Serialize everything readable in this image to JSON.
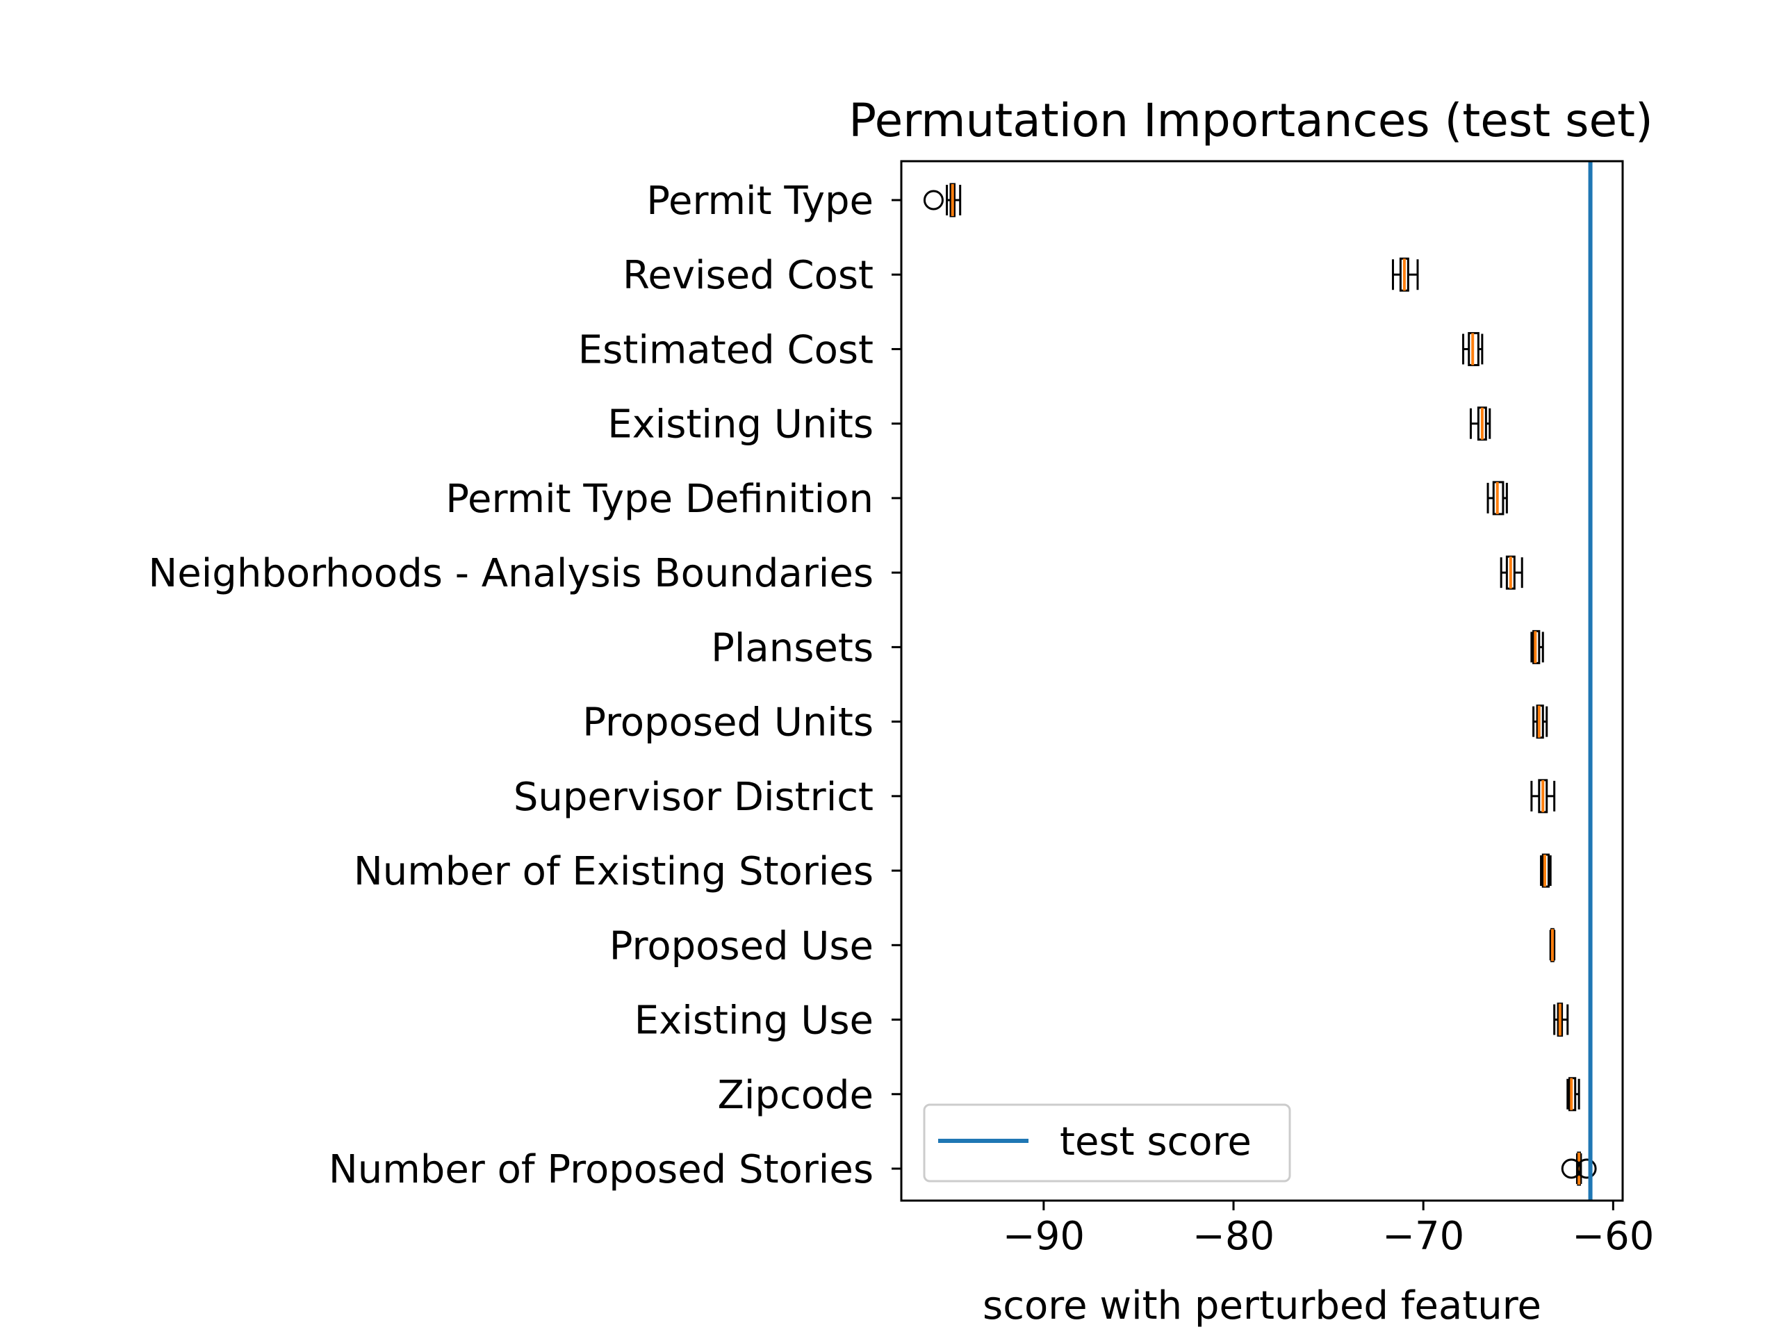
{
  "chart_data": {
    "type": "box",
    "orientation": "horizontal",
    "title": "Permutation Importances (test set)",
    "xlabel": "score with perturbed feature",
    "ylabel": "",
    "xlim": [
      -97.5,
      -59.5
    ],
    "xticks": [
      -90,
      -80,
      -70,
      -60
    ],
    "xtick_labels": [
      "−90",
      "−80",
      "−70",
      "−60"
    ],
    "grid": false,
    "legend": {
      "position": "lower-left",
      "entries": [
        "test score"
      ]
    },
    "colors": {
      "box": "#000000",
      "median": "#ff7f0e",
      "test_score": "#1f77b4"
    },
    "test_score": -61.2,
    "features": [
      {
        "label": "Permit Type",
        "whislo": -95.1,
        "q1": -94.9,
        "median": -94.8,
        "q3": -94.7,
        "whishi": -94.4,
        "fliers": [
          -95.8
        ]
      },
      {
        "label": "Revised Cost",
        "whislo": -71.6,
        "q1": -71.2,
        "median": -71.0,
        "q3": -70.8,
        "whishi": -70.3,
        "fliers": []
      },
      {
        "label": "Estimated Cost",
        "whislo": -67.9,
        "q1": -67.6,
        "median": -67.4,
        "q3": -67.1,
        "whishi": -66.9,
        "fliers": []
      },
      {
        "label": "Existing Units",
        "whislo": -67.5,
        "q1": -67.1,
        "median": -66.9,
        "q3": -66.7,
        "whishi": -66.5,
        "fliers": []
      },
      {
        "label": "Permit Type Definition",
        "whislo": -66.6,
        "q1": -66.3,
        "median": -66.1,
        "q3": -65.8,
        "whishi": -65.6,
        "fliers": []
      },
      {
        "label": "Neighborhoods - Analysis Boundaries",
        "whislo": -65.9,
        "q1": -65.6,
        "median": -65.4,
        "q3": -65.2,
        "whishi": -64.8,
        "fliers": []
      },
      {
        "label": "Plansets",
        "whislo": -64.3,
        "q1": -64.2,
        "median": -64.1,
        "q3": -63.9,
        "whishi": -63.7,
        "fliers": []
      },
      {
        "label": "Proposed Units",
        "whislo": -64.2,
        "q1": -64.0,
        "median": -63.9,
        "q3": -63.7,
        "whishi": -63.5,
        "fliers": []
      },
      {
        "label": "Supervisor District",
        "whislo": -64.3,
        "q1": -63.9,
        "median": -63.7,
        "q3": -63.5,
        "whishi": -63.1,
        "fliers": []
      },
      {
        "label": "Number of Existing Stories",
        "whislo": -63.8,
        "q1": -63.7,
        "median": -63.6,
        "q3": -63.4,
        "whishi": -63.3,
        "fliers": []
      },
      {
        "label": "Proposed Use",
        "whislo": -63.3,
        "q1": -63.25,
        "median": -63.2,
        "q3": -63.15,
        "whishi": -63.1,
        "fliers": []
      },
      {
        "label": "Existing Use",
        "whislo": -63.1,
        "q1": -62.9,
        "median": -62.8,
        "q3": -62.7,
        "whishi": -62.4,
        "fliers": []
      },
      {
        "label": "Zipcode",
        "whislo": -62.4,
        "q1": -62.3,
        "median": -62.2,
        "q3": -62.0,
        "whishi": -61.8,
        "fliers": []
      },
      {
        "label": "Number of Proposed Stories",
        "whislo": -61.9,
        "q1": -61.85,
        "median": -61.8,
        "q3": -61.75,
        "whishi": -61.7,
        "fliers": [
          -62.2,
          -61.4
        ]
      }
    ]
  }
}
